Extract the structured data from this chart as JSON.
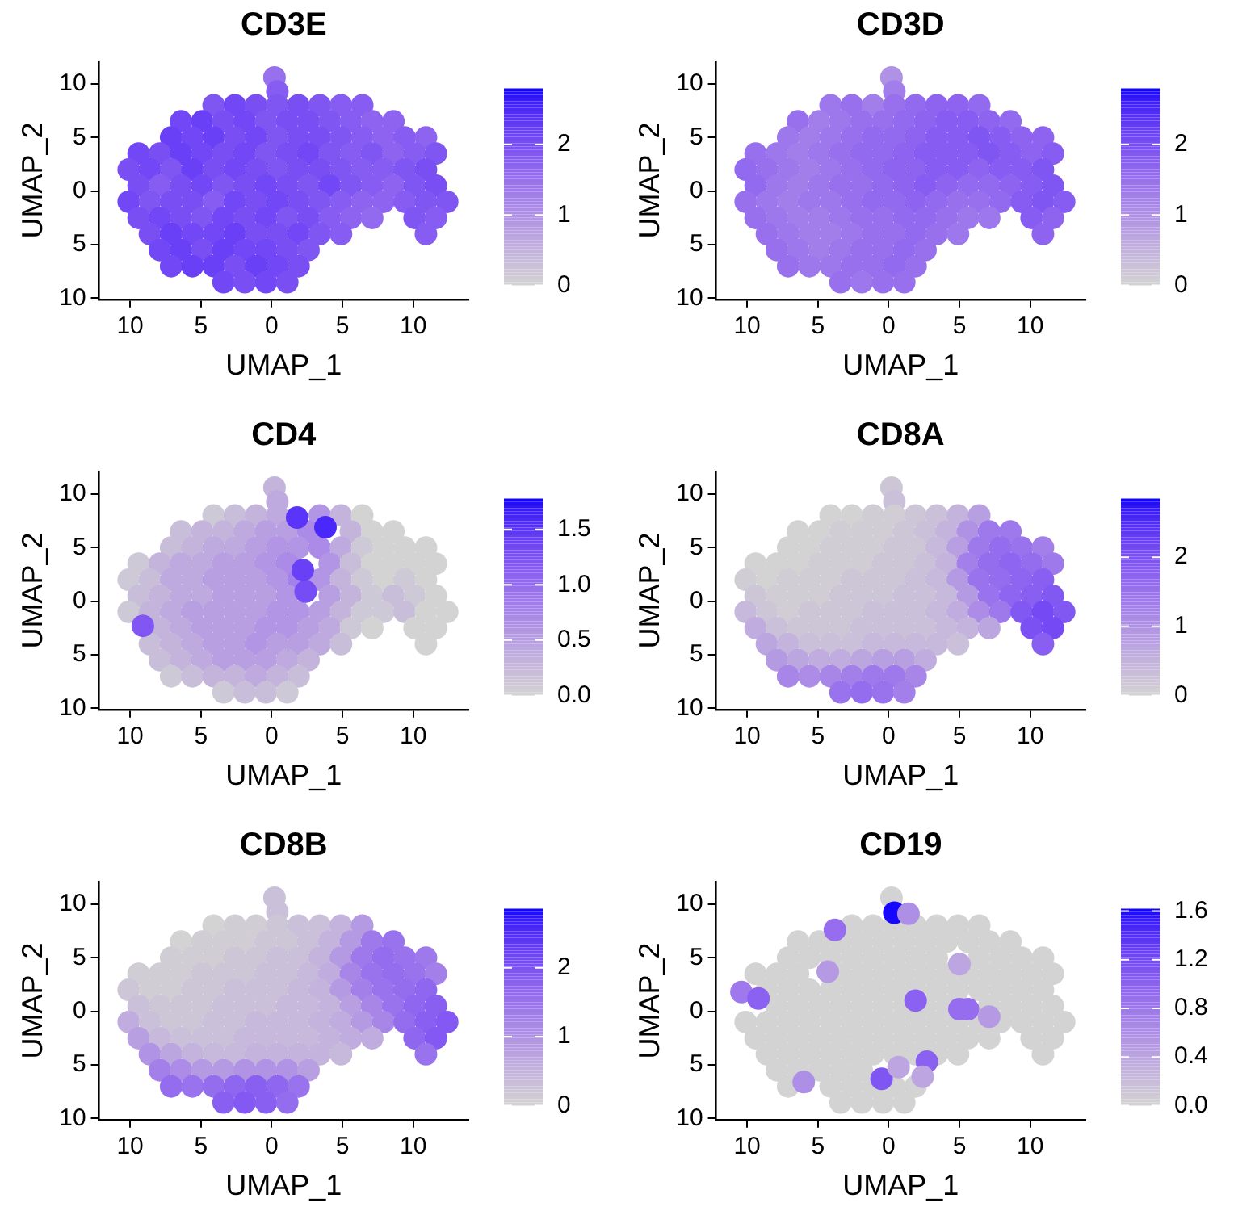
{
  "chart_data": [
    {
      "type": "scatter",
      "title": "CD3E",
      "xlabel": "UMAP_1",
      "ylabel": "UMAP_2",
      "marker": "circle",
      "xlim": [
        -12.2,
        13.9
      ],
      "ylim": [
        -10.1,
        12.1
      ],
      "xticks": [
        {
          "value": -10,
          "label": "10"
        },
        {
          "value": -5,
          "label": "5"
        },
        {
          "value": 0,
          "label": "0"
        },
        {
          "value": 5,
          "label": "5"
        },
        {
          "value": 10,
          "label": "10"
        }
      ],
      "yticks": [
        {
          "value": -10,
          "label": "10"
        },
        {
          "value": -5,
          "label": "5"
        },
        {
          "value": 0,
          "label": "0"
        },
        {
          "value": 5,
          "label": "5"
        },
        {
          "value": 10,
          "label": "10"
        }
      ],
      "clim": [
        0,
        2.8
      ],
      "cticks": [
        0,
        1,
        2
      ],
      "x": [
        0.2,
        0.4,
        -4.1,
        -2.6,
        -1.1,
        0.4,
        1.9,
        3.4,
        4.9,
        6.4,
        -6.4,
        -4.9,
        -3.4,
        -1.9,
        -0.4,
        1.1,
        2.6,
        4.1,
        5.6,
        7.1,
        8.6,
        -7.1,
        -5.6,
        -4.1,
        -2.6,
        -1.1,
        0.4,
        1.9,
        3.4,
        4.9,
        6.4,
        7.9,
        9.4,
        10.9,
        -9.4,
        -7.9,
        -6.4,
        -4.9,
        -3.4,
        -1.9,
        -0.4,
        1.1,
        2.6,
        4.1,
        5.6,
        7.1,
        8.6,
        10.1,
        11.6,
        -10.1,
        -8.6,
        -7.1,
        -5.6,
        -4.1,
        -2.6,
        -1.1,
        0.4,
        1.9,
        3.4,
        4.9,
        6.4,
        7.9,
        9.4,
        10.9,
        -9.4,
        -7.9,
        -6.4,
        -4.9,
        -3.4,
        -1.9,
        -0.4,
        1.1,
        2.6,
        4.1,
        5.6,
        7.1,
        8.6,
        10.1,
        11.6,
        -10.1,
        -8.6,
        -7.1,
        -5.6,
        -4.1,
        -2.6,
        -1.1,
        0.4,
        1.9,
        3.4,
        4.9,
        6.4,
        7.9,
        9.4,
        10.9,
        12.4,
        -9.4,
        -7.9,
        -6.4,
        -4.9,
        -3.4,
        -1.9,
        -0.4,
        1.1,
        2.6,
        4.1,
        5.6,
        7.1,
        10.1,
        11.6,
        -8.6,
        -7.1,
        -5.6,
        -4.1,
        -2.6,
        -1.1,
        0.4,
        1.9,
        3.4,
        4.9,
        10.9,
        -7.9,
        -6.4,
        -4.9,
        -3.4,
        -1.9,
        -0.4,
        1.1,
        2.6,
        -7.1,
        -5.6,
        -4.1,
        -2.6,
        -1.1,
        0.4,
        1.9,
        -3.4,
        -1.9,
        -0.4,
        1.1
      ],
      "values": [
        10.6,
        9.3,
        8,
        8,
        8,
        8,
        8,
        8,
        8,
        8,
        6.5,
        6.5,
        6.5,
        6.5,
        6.5,
        6.5,
        6.5,
        6.5,
        6.5,
        6.5,
        6.5,
        5,
        5,
        5,
        5,
        5,
        5,
        5,
        5,
        5,
        5,
        5,
        5,
        5,
        3.5,
        3.5,
        3.5,
        3.5,
        3.5,
        3.5,
        3.5,
        3.5,
        3.5,
        3.5,
        3.5,
        3.5,
        3.5,
        3.5,
        3.5,
        2,
        2,
        2,
        2,
        2,
        2,
        2,
        2,
        2,
        2,
        2,
        2,
        2,
        2,
        2,
        0.5,
        0.5,
        0.5,
        0.5,
        0.5,
        0.5,
        0.5,
        0.5,
        0.5,
        0.5,
        0.5,
        0.5,
        0.5,
        0.5,
        0.5,
        -1,
        -1,
        -1,
        -1,
        -1,
        -1,
        -1,
        -1,
        -1,
        -1,
        -1,
        -1,
        -1,
        -1,
        -1,
        -1,
        -2.5,
        -2.5,
        -2.5,
        -2.5,
        -2.5,
        -2.5,
        -2.5,
        -2.5,
        -2.5,
        -2.5,
        -2.5,
        -2.5,
        -2.5,
        -2.5,
        -4,
        -4,
        -4,
        -4,
        -4,
        -4,
        -4,
        -4,
        -4,
        -4,
        -4,
        -5.5,
        -5.5,
        -5.5,
        -5.5,
        -5.5,
        -5.5,
        -5.5,
        -5.5,
        -7,
        -7,
        -7,
        -7,
        -7,
        -7,
        -7,
        -8.5,
        -8.5,
        -8.5,
        -8.5
      ],
      "cvalues": [
        1.5,
        1.8,
        1.9,
        2.1,
        2.0,
        1.9,
        2.0,
        1.9,
        1.8,
        1.8,
        2.1,
        2.2,
        2.0,
        2.1,
        1.9,
        2.0,
        2.0,
        1.9,
        1.8,
        1.7,
        1.7,
        2.2,
        2.1,
        2.2,
        2.0,
        2.1,
        1.9,
        2.0,
        2.0,
        1.9,
        1.8,
        1.7,
        1.8,
        1.7,
        2.1,
        2.0,
        2.2,
        2.1,
        2.0,
        2.1,
        1.9,
        2.0,
        2.1,
        1.9,
        1.8,
        1.9,
        1.7,
        1.8,
        1.9,
        2.0,
        2.1,
        1.9,
        2.2,
        2.0,
        2.1,
        2.0,
        1.9,
        2.0,
        2.0,
        1.9,
        1.8,
        1.8,
        1.9,
        2.0,
        2.0,
        1.8,
        2.0,
        2.1,
        1.9,
        2.0,
        2.1,
        2.0,
        1.9,
        2.1,
        1.9,
        1.8,
        1.7,
        1.9,
        2.0,
        2.1,
        1.9,
        2.0,
        2.0,
        1.8,
        2.1,
        2.0,
        2.1,
        2.0,
        1.9,
        1.8,
        1.7,
        1.7,
        1.8,
        1.9,
        1.9,
        2.0,
        2.1,
        2.0,
        1.9,
        2.1,
        2.0,
        2.1,
        1.9,
        2.0,
        1.8,
        1.7,
        1.6,
        1.9,
        1.8,
        2.0,
        2.2,
        2.1,
        2.1,
        2.2,
        2.0,
        2.0,
        2.1,
        1.9,
        1.8,
        1.8,
        2.1,
        2.2,
        2.0,
        2.2,
        2.1,
        2.1,
        2.0,
        1.9,
        2.1,
        2.2,
        2.2,
        2.0,
        2.2,
        2.1,
        2.0,
        2.1,
        2.0,
        2.1,
        2.0
      ]
    },
    {
      "type": "scatter",
      "title": "CD3D",
      "xlabel": "UMAP_1",
      "ylabel": "UMAP_2",
      "marker": "circle",
      "xlim": [
        -12.2,
        13.9
      ],
      "ylim": [
        -10.1,
        12.1
      ],
      "xticks": [
        {
          "value": -10,
          "label": "10"
        },
        {
          "value": -5,
          "label": "5"
        },
        {
          "value": 0,
          "label": "0"
        },
        {
          "value": 5,
          "label": "5"
        },
        {
          "value": 10,
          "label": "10"
        }
      ],
      "yticks": [
        {
          "value": -10,
          "label": "10"
        },
        {
          "value": -5,
          "label": "5"
        },
        {
          "value": 0,
          "label": "0"
        },
        {
          "value": 5,
          "label": "5"
        },
        {
          "value": 10,
          "label": "10"
        }
      ],
      "clim": [
        0,
        2.8
      ],
      "cticks": [
        0,
        1,
        2
      ],
      "x": [
        0.2,
        0.4,
        -4.1,
        -2.6,
        -1.1,
        0.4,
        1.9,
        3.4,
        4.9,
        6.4,
        -6.4,
        -4.9,
        -3.4,
        -1.9,
        -0.4,
        1.1,
        2.6,
        4.1,
        5.6,
        7.1,
        8.6,
        -7.1,
        -5.6,
        -4.1,
        -2.6,
        -1.1,
        0.4,
        1.9,
        3.4,
        4.9,
        6.4,
        7.9,
        9.4,
        10.9,
        -9.4,
        -7.9,
        -6.4,
        -4.9,
        -3.4,
        -1.9,
        -0.4,
        1.1,
        2.6,
        4.1,
        5.6,
        7.1,
        8.6,
        10.1,
        11.6,
        -10.1,
        -8.6,
        -7.1,
        -5.6,
        -4.1,
        -2.6,
        -1.1,
        0.4,
        1.9,
        3.4,
        4.9,
        6.4,
        7.9,
        9.4,
        10.9,
        -9.4,
        -7.9,
        -6.4,
        -4.9,
        -3.4,
        -1.9,
        -0.4,
        1.1,
        2.6,
        4.1,
        5.6,
        7.1,
        8.6,
        10.1,
        11.6,
        -10.1,
        -8.6,
        -7.1,
        -5.6,
        -4.1,
        -2.6,
        -1.1,
        0.4,
        1.9,
        3.4,
        4.9,
        6.4,
        7.9,
        9.4,
        10.9,
        12.4,
        -9.4,
        -7.9,
        -6.4,
        -4.9,
        -3.4,
        -1.9,
        -0.4,
        1.1,
        2.6,
        4.1,
        5.6,
        7.1,
        10.1,
        11.6,
        -8.6,
        -7.1,
        -5.6,
        -4.1,
        -2.6,
        -1.1,
        0.4,
        1.9,
        3.4,
        4.9,
        10.9,
        -7.9,
        -6.4,
        -4.9,
        -3.4,
        -1.9,
        -0.4,
        1.1,
        2.6,
        -7.1,
        -5.6,
        -4.1,
        -2.6,
        -1.1,
        0.4,
        1.9,
        -3.4,
        -1.9,
        -0.4,
        1.1
      ],
      "values": [
        10.6,
        9.3,
        8,
        8,
        8,
        8,
        8,
        8,
        8,
        8,
        6.5,
        6.5,
        6.5,
        6.5,
        6.5,
        6.5,
        6.5,
        6.5,
        6.5,
        6.5,
        6.5,
        5,
        5,
        5,
        5,
        5,
        5,
        5,
        5,
        5,
        5,
        5,
        5,
        5,
        3.5,
        3.5,
        3.5,
        3.5,
        3.5,
        3.5,
        3.5,
        3.5,
        3.5,
        3.5,
        3.5,
        3.5,
        3.5,
        3.5,
        3.5,
        2,
        2,
        2,
        2,
        2,
        2,
        2,
        2,
        2,
        2,
        2,
        2,
        2,
        2,
        2,
        0.5,
        0.5,
        0.5,
        0.5,
        0.5,
        0.5,
        0.5,
        0.5,
        0.5,
        0.5,
        0.5,
        0.5,
        0.5,
        0.5,
        0.5,
        -1,
        -1,
        -1,
        -1,
        -1,
        -1,
        -1,
        -1,
        -1,
        -1,
        -1,
        -1,
        -1,
        -1,
        -1,
        -1,
        -2.5,
        -2.5,
        -2.5,
        -2.5,
        -2.5,
        -2.5,
        -2.5,
        -2.5,
        -2.5,
        -2.5,
        -2.5,
        -2.5,
        -2.5,
        -2.5,
        -4,
        -4,
        -4,
        -4,
        -4,
        -4,
        -4,
        -4,
        -4,
        -4,
        -4,
        -5.5,
        -5.5,
        -5.5,
        -5.5,
        -5.5,
        -5.5,
        -5.5,
        -5.5,
        -7,
        -7,
        -7,
        -7,
        -7,
        -7,
        -7,
        -8.5,
        -8.5,
        -8.5,
        -8.5
      ],
      "cvalues": [
        1.0,
        1.3,
        1.4,
        1.5,
        1.3,
        1.5,
        1.6,
        1.7,
        1.7,
        1.6,
        1.5,
        1.3,
        1.4,
        1.5,
        1.5,
        1.6,
        1.7,
        1.8,
        1.8,
        1.7,
        1.6,
        1.4,
        1.3,
        1.4,
        1.5,
        1.6,
        1.6,
        1.7,
        1.8,
        1.8,
        1.9,
        1.8,
        1.7,
        1.7,
        1.5,
        1.4,
        1.3,
        1.4,
        1.5,
        1.6,
        1.6,
        1.7,
        1.8,
        1.8,
        1.8,
        1.9,
        1.8,
        1.7,
        1.8,
        1.6,
        1.5,
        1.4,
        1.3,
        1.4,
        1.5,
        1.6,
        1.7,
        1.7,
        1.8,
        1.8,
        1.7,
        1.8,
        1.8,
        1.9,
        1.6,
        1.4,
        1.3,
        1.4,
        1.5,
        1.5,
        1.6,
        1.7,
        1.8,
        1.7,
        1.6,
        1.6,
        1.7,
        1.8,
        1.9,
        1.5,
        1.4,
        1.3,
        1.4,
        1.4,
        1.5,
        1.6,
        1.6,
        1.7,
        1.6,
        1.5,
        1.5,
        1.6,
        1.8,
        1.9,
        1.8,
        1.5,
        1.4,
        1.3,
        1.3,
        1.4,
        1.5,
        1.5,
        1.6,
        1.6,
        1.5,
        1.4,
        1.4,
        1.8,
        1.7,
        1.5,
        1.4,
        1.3,
        1.3,
        1.4,
        1.5,
        1.5,
        1.6,
        1.5,
        1.4,
        1.7,
        1.5,
        1.4,
        1.3,
        1.4,
        1.5,
        1.5,
        1.6,
        1.5,
        1.5,
        1.4,
        1.4,
        1.5,
        1.5,
        1.6,
        1.5,
        1.5,
        1.4,
        1.5,
        1.5
      ]
    },
    {
      "type": "scatter",
      "title": "CD4",
      "xlabel": "UMAP_1",
      "ylabel": "UMAP_2",
      "marker": "circle",
      "xlim": [
        -12.2,
        13.9
      ],
      "ylim": [
        -10.1,
        12.1
      ],
      "xticks": [
        {
          "value": -10,
          "label": "10"
        },
        {
          "value": -5,
          "label": "5"
        },
        {
          "value": 0,
          "label": "0"
        },
        {
          "value": 5,
          "label": "5"
        },
        {
          "value": 10,
          "label": "10"
        }
      ],
      "yticks": [
        {
          "value": -10,
          "label": "10"
        },
        {
          "value": -5,
          "label": "5"
        },
        {
          "value": 0,
          "label": "0"
        },
        {
          "value": 5,
          "label": "5"
        },
        {
          "value": 10,
          "label": "10"
        }
      ],
      "clim": [
        0,
        1.78
      ],
      "cticks": [
        {
          "value": 0,
          "label": "0.0"
        },
        {
          "value": 0.5,
          "label": "0.5"
        },
        {
          "value": 1,
          "label": "1.0"
        },
        {
          "value": 1.5,
          "label": "1.5"
        }
      ],
      "x": [
        0.2,
        0.4,
        -4.1,
        -2.6,
        -1.1,
        0.4,
        3.4,
        4.9,
        6.4,
        -6.4,
        -4.9,
        -3.4,
        -1.9,
        -0.4,
        1.1,
        2.6,
        5.6,
        7.1,
        8.6,
        -7.1,
        -5.6,
        -4.1,
        -2.6,
        -1.1,
        0.4,
        1.9,
        3.4,
        4.9,
        6.4,
        7.9,
        9.4,
        10.9,
        -9.4,
        -7.9,
        -6.4,
        -4.9,
        -3.4,
        -1.9,
        -0.4,
        1.1,
        4.1,
        5.6,
        7.1,
        8.6,
        10.1,
        11.6,
        -10.1,
        -8.6,
        -7.1,
        -5.6,
        -4.1,
        -2.6,
        -1.1,
        0.4,
        1.9,
        3.4,
        4.9,
        6.4,
        7.9,
        9.4,
        10.9,
        -9.4,
        -7.9,
        -6.4,
        -4.9,
        -3.4,
        -1.9,
        -0.4,
        1.1,
        4.1,
        5.6,
        7.1,
        8.6,
        10.1,
        11.6,
        -10.1,
        -8.6,
        -7.1,
        -5.6,
        -4.1,
        -2.6,
        -1.1,
        0.4,
        1.9,
        3.4,
        4.9,
        6.4,
        7.9,
        9.4,
        10.9,
        12.4,
        -7.9,
        -6.4,
        -4.9,
        -3.4,
        -1.9,
        -0.4,
        1.1,
        2.6,
        4.1,
        5.6,
        7.1,
        10.1,
        11.6,
        -8.6,
        -7.1,
        -5.6,
        -4.1,
        -2.6,
        -1.1,
        0.4,
        1.9,
        3.4,
        4.9,
        10.9,
        -7.9,
        -6.4,
        -4.9,
        -3.4,
        -1.9,
        -0.4,
        1.1,
        2.6,
        -7.1,
        -5.6,
        -4.1,
        -2.6,
        -1.1,
        0.4,
        1.9,
        -3.4,
        -1.9,
        -0.4,
        1.1,
        3.8,
        2.4,
        1.8,
        2.2,
        -9.1
      ],
      "values": [
        10.6,
        9.3,
        8,
        8,
        8,
        8,
        8,
        8,
        8,
        6.5,
        6.5,
        6.5,
        6.5,
        6.5,
        6.5,
        6.5,
        6.5,
        6.5,
        6.5,
        5,
        5,
        5,
        5,
        5,
        5,
        5,
        5,
        5,
        5,
        5,
        5,
        5,
        3.5,
        3.5,
        3.5,
        3.5,
        3.5,
        3.5,
        3.5,
        3.5,
        3.5,
        3.5,
        3.5,
        3.5,
        3.5,
        3.5,
        2,
        2,
        2,
        2,
        2,
        2,
        2,
        2,
        2,
        2,
        2,
        2,
        2,
        2,
        2,
        0.5,
        0.5,
        0.5,
        0.5,
        0.5,
        0.5,
        0.5,
        0.5,
        0.5,
        0.5,
        0.5,
        0.5,
        0.5,
        0.5,
        -1,
        -1,
        -1,
        -1,
        -1,
        -1,
        -1,
        -1,
        -1,
        -1,
        -1,
        -1,
        -1,
        -1,
        -1,
        -1,
        -2.5,
        -2.5,
        -2.5,
        -2.5,
        -2.5,
        -2.5,
        -2.5,
        -2.5,
        -2.5,
        -2.5,
        -2.5,
        -2.5,
        -2.5,
        -4,
        -4,
        -4,
        -4,
        -4,
        -4,
        -4,
        -4,
        -4,
        -4,
        -4,
        -5.5,
        -5.5,
        -5.5,
        -5.5,
        -5.5,
        -5.5,
        -5.5,
        -5.5,
        -7,
        -7,
        -7,
        -7,
        -7,
        -7,
        -7,
        -8.5,
        -8.5,
        -8.5,
        -8.5,
        6.9,
        0.9,
        7.8,
        2.9,
        -2.3
      ],
      "cvalues": [
        0.3,
        0.4,
        0.1,
        0.2,
        0.3,
        0.4,
        0.6,
        0.3,
        0,
        0.2,
        0.3,
        0.3,
        0.4,
        0.5,
        0.5,
        0.7,
        0.3,
        0,
        0,
        0.2,
        0.3,
        0.4,
        0.4,
        0.5,
        0.6,
        0.6,
        0.7,
        0.4,
        0.1,
        0,
        0,
        0,
        0.1,
        0.3,
        0.4,
        0.4,
        0.5,
        0.5,
        0.6,
        0.7,
        0.6,
        0.2,
        0,
        0,
        0,
        0,
        0.1,
        0.2,
        0.4,
        0.4,
        0.5,
        0.5,
        0.5,
        0.6,
        0.8,
        0.6,
        0.3,
        0.1,
        0,
        0.1,
        0,
        0.2,
        0.3,
        0.4,
        0.4,
        0.5,
        0.5,
        0.5,
        0.6,
        0.5,
        0.3,
        0.1,
        0.2,
        0.1,
        0,
        0.1,
        0.3,
        0.4,
        0.5,
        0.5,
        0.5,
        0.5,
        0.6,
        0.6,
        0.5,
        0.3,
        0.1,
        0.1,
        0.2,
        0,
        0,
        0.3,
        0.4,
        0.5,
        0.5,
        0.5,
        0.6,
        0.6,
        0.5,
        0.4,
        0.1,
        0,
        0,
        0,
        0.2,
        0.3,
        0.4,
        0.5,
        0.5,
        0.6,
        0.5,
        0.5,
        0.4,
        0.2,
        0,
        0.2,
        0.3,
        0.4,
        0.5,
        0.5,
        0.5,
        0.4,
        0.3,
        0.1,
        0.2,
        0.3,
        0.3,
        0.4,
        0.3,
        0.2,
        0.1,
        0.2,
        0.2,
        0.1,
        1.6,
        1.3,
        1.5,
        1.4,
        1.2
      ]
    },
    {
      "type": "scatter",
      "title": "CD8A",
      "xlabel": "UMAP_1",
      "ylabel": "UMAP_2",
      "marker": "circle",
      "xlim": [
        -12.2,
        13.9
      ],
      "ylim": [
        -10.1,
        12.1
      ],
      "xticks": [
        {
          "value": -10,
          "label": "10"
        },
        {
          "value": -5,
          "label": "5"
        },
        {
          "value": 0,
          "label": "0"
        },
        {
          "value": 5,
          "label": "5"
        },
        {
          "value": 10,
          "label": "10"
        }
      ],
      "yticks": [
        {
          "value": -10,
          "label": "10"
        },
        {
          "value": -5,
          "label": "5"
        },
        {
          "value": 0,
          "label": "0"
        },
        {
          "value": 5,
          "label": "5"
        },
        {
          "value": 10,
          "label": "10"
        }
      ],
      "clim": [
        0,
        2.85
      ],
      "cticks": [
        0,
        1,
        2
      ],
      "x": [
        0.2,
        0.4,
        -4.1,
        -2.6,
        -1.1,
        0.4,
        1.9,
        3.4,
        4.9,
        6.4,
        -6.4,
        -4.9,
        -3.4,
        -1.9,
        -0.4,
        1.1,
        2.6,
        4.1,
        5.6,
        7.1,
        8.6,
        -7.1,
        -5.6,
        -4.1,
        -2.6,
        -1.1,
        0.4,
        1.9,
        3.4,
        4.9,
        6.4,
        7.9,
        9.4,
        10.9,
        -9.4,
        -7.9,
        -6.4,
        -4.9,
        -3.4,
        -1.9,
        -0.4,
        1.1,
        2.6,
        4.1,
        5.6,
        7.1,
        8.6,
        10.1,
        11.6,
        -10.1,
        -8.6,
        -7.1,
        -5.6,
        -4.1,
        -2.6,
        -1.1,
        0.4,
        1.9,
        3.4,
        4.9,
        6.4,
        7.9,
        9.4,
        10.9,
        -9.4,
        -7.9,
        -6.4,
        -4.9,
        -3.4,
        -1.9,
        -0.4,
        1.1,
        2.6,
        4.1,
        5.6,
        7.1,
        8.6,
        10.1,
        11.6,
        -10.1,
        -8.6,
        -7.1,
        -5.6,
        -4.1,
        -2.6,
        -1.1,
        0.4,
        1.9,
        3.4,
        4.9,
        6.4,
        7.9,
        9.4,
        10.9,
        12.4,
        -9.4,
        -7.9,
        -6.4,
        -4.9,
        -3.4,
        -1.9,
        -0.4,
        1.1,
        2.6,
        4.1,
        5.6,
        7.1,
        10.1,
        11.6,
        -8.6,
        -7.1,
        -5.6,
        -4.1,
        -2.6,
        -1.1,
        0.4,
        1.9,
        3.4,
        4.9,
        10.9,
        -7.9,
        -6.4,
        -4.9,
        -3.4,
        -1.9,
        -0.4,
        1.1,
        2.6,
        -7.1,
        -5.6,
        -4.1,
        -2.6,
        -1.1,
        0.4,
        1.9,
        -3.4,
        -1.9,
        -0.4,
        1.1
      ],
      "values": [
        10.6,
        9.3,
        8,
        8,
        8,
        8,
        8,
        8,
        8,
        8,
        6.5,
        6.5,
        6.5,
        6.5,
        6.5,
        6.5,
        6.5,
        6.5,
        6.5,
        6.5,
        6.5,
        5,
        5,
        5,
        5,
        5,
        5,
        5,
        5,
        5,
        5,
        5,
        5,
        5,
        3.5,
        3.5,
        3.5,
        3.5,
        3.5,
        3.5,
        3.5,
        3.5,
        3.5,
        3.5,
        3.5,
        3.5,
        3.5,
        3.5,
        3.5,
        2,
        2,
        2,
        2,
        2,
        2,
        2,
        2,
        2,
        2,
        2,
        2,
        2,
        2,
        2,
        0.5,
        0.5,
        0.5,
        0.5,
        0.5,
        0.5,
        0.5,
        0.5,
        0.5,
        0.5,
        0.5,
        0.5,
        0.5,
        0.5,
        0.5,
        -1,
        -1,
        -1,
        -1,
        -1,
        -1,
        -1,
        -1,
        -1,
        -1,
        -1,
        -1,
        -1,
        -1,
        -1,
        -1,
        -2.5,
        -2.5,
        -2.5,
        -2.5,
        -2.5,
        -2.5,
        -2.5,
        -2.5,
        -2.5,
        -2.5,
        -2.5,
        -2.5,
        -2.5,
        -2.5,
        -4,
        -4,
        -4,
        -4,
        -4,
        -4,
        -4,
        -4,
        -4,
        -4,
        -4,
        -5.5,
        -5.5,
        -5.5,
        -5.5,
        -5.5,
        -5.5,
        -5.5,
        -5.5,
        -7,
        -7,
        -7,
        -7,
        -7,
        -7,
        -7,
        -8.5,
        -8.5,
        -8.5,
        -8.5
      ],
      "cvalues": [
        0.2,
        0.3,
        0,
        0,
        0.1,
        0.1,
        0.2,
        0.3,
        0.5,
        0.8,
        0,
        0,
        0.1,
        0.1,
        0.1,
        0.2,
        0.3,
        0.5,
        1.0,
        1.4,
        1.4,
        0,
        0,
        0.1,
        0.1,
        0.1,
        0.2,
        0.2,
        0.4,
        0.8,
        1.4,
        1.6,
        1.5,
        1.3,
        0,
        0,
        0,
        0.1,
        0.1,
        0.1,
        0.2,
        0.2,
        0.3,
        0.5,
        1.3,
        1.6,
        1.7,
        1.6,
        1.4,
        0.1,
        0,
        0.1,
        0.1,
        0.1,
        0.2,
        0.2,
        0.2,
        0.3,
        0.4,
        0.9,
        1.5,
        1.6,
        1.7,
        1.8,
        0.2,
        0.1,
        0.1,
        0.1,
        0.2,
        0.2,
        0.2,
        0.3,
        0.3,
        0.4,
        0.9,
        1.5,
        1.7,
        1.8,
        1.9,
        0.4,
        0.2,
        0.1,
        0.2,
        0.2,
        0.2,
        0.3,
        0.3,
        0.3,
        0.4,
        0.6,
        1.1,
        1.4,
        1.9,
        2.1,
        1.9,
        0.6,
        0.3,
        0.2,
        0.2,
        0.2,
        0.3,
        0.3,
        0.3,
        0.3,
        0.4,
        0.5,
        0.7,
        2.0,
        2.1,
        0.7,
        0.5,
        0.3,
        0.3,
        0.3,
        0.4,
        0.4,
        0.4,
        0.4,
        0.3,
        1.8,
        0.9,
        0.7,
        0.6,
        0.6,
        0.7,
        0.8,
        0.8,
        0.6,
        1.2,
        1.1,
        1.2,
        1.3,
        1.4,
        1.4,
        1.2,
        1.5,
        1.6,
        1.5,
        1.3
      ]
    },
    {
      "type": "scatter",
      "title": "CD8B",
      "xlabel": "UMAP_1",
      "ylabel": "UMAP_2",
      "marker": "circle",
      "xlim": [
        -12.2,
        13.9
      ],
      "ylim": [
        -10.1,
        12.1
      ],
      "xticks": [
        {
          "value": -10,
          "label": "10"
        },
        {
          "value": -5,
          "label": "5"
        },
        {
          "value": 0,
          "label": "0"
        },
        {
          "value": 5,
          "label": "5"
        },
        {
          "value": 10,
          "label": "10"
        }
      ],
      "yticks": [
        {
          "value": -10,
          "label": "10"
        },
        {
          "value": -5,
          "label": "5"
        },
        {
          "value": 0,
          "label": "0"
        },
        {
          "value": 5,
          "label": "5"
        },
        {
          "value": 10,
          "label": "10"
        }
      ],
      "clim": [
        0,
        2.86
      ],
      "cticks": [
        0,
        1,
        2
      ],
      "x": [
        0.2,
        0.4,
        -4.1,
        -2.6,
        -1.1,
        0.4,
        1.9,
        3.4,
        4.9,
        6.4,
        -6.4,
        -4.9,
        -3.4,
        -1.9,
        -0.4,
        1.1,
        2.6,
        4.1,
        5.6,
        7.1,
        8.6,
        -7.1,
        -5.6,
        -4.1,
        -2.6,
        -1.1,
        0.4,
        1.9,
        3.4,
        4.9,
        6.4,
        7.9,
        9.4,
        10.9,
        -9.4,
        -7.9,
        -6.4,
        -4.9,
        -3.4,
        -1.9,
        -0.4,
        1.1,
        2.6,
        4.1,
        5.6,
        7.1,
        8.6,
        10.1,
        11.6,
        -10.1,
        -8.6,
        -7.1,
        -5.6,
        -4.1,
        -2.6,
        -1.1,
        0.4,
        1.9,
        3.4,
        4.9,
        6.4,
        7.9,
        9.4,
        10.9,
        -9.4,
        -7.9,
        -6.4,
        -4.9,
        -3.4,
        -1.9,
        -0.4,
        1.1,
        2.6,
        4.1,
        5.6,
        7.1,
        8.6,
        10.1,
        11.6,
        -10.1,
        -8.6,
        -7.1,
        -5.6,
        -4.1,
        -2.6,
        -1.1,
        0.4,
        1.9,
        3.4,
        4.9,
        6.4,
        7.9,
        9.4,
        10.9,
        12.4,
        -9.4,
        -7.9,
        -6.4,
        -4.9,
        -3.4,
        -1.9,
        -0.4,
        1.1,
        2.6,
        4.1,
        5.6,
        7.1,
        10.1,
        11.6,
        -8.6,
        -7.1,
        -5.6,
        -4.1,
        -2.6,
        -1.1,
        0.4,
        1.9,
        3.4,
        4.9,
        10.9,
        -7.9,
        -6.4,
        -4.9,
        -3.4,
        -1.9,
        -0.4,
        1.1,
        2.6,
        -7.1,
        -5.6,
        -4.1,
        -2.6,
        -1.1,
        0.4,
        1.9,
        -3.4,
        -1.9,
        -0.4,
        1.1
      ],
      "values": [
        10.6,
        9.3,
        8,
        8,
        8,
        8,
        8,
        8,
        8,
        8,
        6.5,
        6.5,
        6.5,
        6.5,
        6.5,
        6.5,
        6.5,
        6.5,
        6.5,
        6.5,
        6.5,
        5,
        5,
        5,
        5,
        5,
        5,
        5,
        5,
        5,
        5,
        5,
        5,
        5,
        3.5,
        3.5,
        3.5,
        3.5,
        3.5,
        3.5,
        3.5,
        3.5,
        3.5,
        3.5,
        3.5,
        3.5,
        3.5,
        3.5,
        3.5,
        2,
        2,
        2,
        2,
        2,
        2,
        2,
        2,
        2,
        2,
        2,
        2,
        2,
        2,
        2,
        0.5,
        0.5,
        0.5,
        0.5,
        0.5,
        0.5,
        0.5,
        0.5,
        0.5,
        0.5,
        0.5,
        0.5,
        0.5,
        0.5,
        0.5,
        -1,
        -1,
        -1,
        -1,
        -1,
        -1,
        -1,
        -1,
        -1,
        -1,
        -1,
        -1,
        -1,
        -1,
        -1,
        -1,
        -2.5,
        -2.5,
        -2.5,
        -2.5,
        -2.5,
        -2.5,
        -2.5,
        -2.5,
        -2.5,
        -2.5,
        -2.5,
        -2.5,
        -2.5,
        -2.5,
        -4,
        -4,
        -4,
        -4,
        -4,
        -4,
        -4,
        -4,
        -4,
        -4,
        -4,
        -5.5,
        -5.5,
        -5.5,
        -5.5,
        -5.5,
        -5.5,
        -5.5,
        -5.5,
        -7,
        -7,
        -7,
        -7,
        -7,
        -7,
        -7,
        -8.5,
        -8.5,
        -8.5,
        -8.5
      ],
      "cvalues": [
        0.3,
        0.3,
        0,
        0.1,
        0.1,
        0.2,
        0.3,
        0.3,
        0.5,
        0.9,
        0,
        0.1,
        0.1,
        0.1,
        0.2,
        0.2,
        0.3,
        0.5,
        0.9,
        1.4,
        1.5,
        0.1,
        0.1,
        0.1,
        0.2,
        0.2,
        0.3,
        0.3,
        0.5,
        0.9,
        1.4,
        1.6,
        1.5,
        1.4,
        0.1,
        0.1,
        0.1,
        0.2,
        0.2,
        0.2,
        0.3,
        0.3,
        0.4,
        0.6,
        1.2,
        1.5,
        1.6,
        1.5,
        1.3,
        0.2,
        0.1,
        0.1,
        0.2,
        0.2,
        0.3,
        0.3,
        0.3,
        0.4,
        0.5,
        0.9,
        1.3,
        1.5,
        1.6,
        1.7,
        0.3,
        0.2,
        0.2,
        0.2,
        0.3,
        0.3,
        0.3,
        0.4,
        0.4,
        0.5,
        0.8,
        1.2,
        1.5,
        1.7,
        1.8,
        0.6,
        0.3,
        0.2,
        0.2,
        0.3,
        0.3,
        0.4,
        0.4,
        0.4,
        0.5,
        0.6,
        0.9,
        1.2,
        1.6,
        1.8,
        1.9,
        0.8,
        0.4,
        0.3,
        0.3,
        0.3,
        0.4,
        0.4,
        0.4,
        0.4,
        0.5,
        0.6,
        0.6,
        1.7,
        1.9,
        1.0,
        0.7,
        0.5,
        0.4,
        0.4,
        0.5,
        0.5,
        0.5,
        0.5,
        0.4,
        1.5,
        1.3,
        1.1,
        0.9,
        0.9,
        1.0,
        1.0,
        1.0,
        0.8,
        1.6,
        1.5,
        1.6,
        1.7,
        1.8,
        1.7,
        1.5,
        1.8,
        1.9,
        1.8,
        1.6
      ]
    },
    {
      "type": "scatter",
      "title": "CD19",
      "xlabel": "UMAP_1",
      "ylabel": "UMAP_2",
      "marker": "circle",
      "xlim": [
        -12.2,
        13.9
      ],
      "ylim": [
        -10.1,
        12.1
      ],
      "xticks": [
        {
          "value": -10,
          "label": "10"
        },
        {
          "value": -5,
          "label": "5"
        },
        {
          "value": 0,
          "label": "0"
        },
        {
          "value": 5,
          "label": "5"
        },
        {
          "value": 10,
          "label": "10"
        }
      ],
      "yticks": [
        {
          "value": -10,
          "label": "10"
        },
        {
          "value": -5,
          "label": "5"
        },
        {
          "value": 0,
          "label": "0"
        },
        {
          "value": 5,
          "label": "5"
        },
        {
          "value": 10,
          "label": "10"
        }
      ],
      "clim": [
        0,
        1.62
      ],
      "cticks": [
        {
          "value": 0,
          "label": "0.0"
        },
        {
          "value": 0.4,
          "label": "0.4"
        },
        {
          "value": 0.8,
          "label": "0.8"
        },
        {
          "value": 1.2,
          "label": "1.2"
        },
        {
          "value": 1.6,
          "label": "1.6"
        }
      ],
      "x": [
        0.2,
        -2.6,
        -1.1,
        0.4,
        1.9,
        3.4,
        4.9,
        6.4,
        -6.4,
        -4.9,
        -3.4,
        -1.9,
        -0.4,
        1.1,
        2.6,
        4.1,
        5.6,
        7.1,
        8.6,
        -7.1,
        -5.6,
        -4.1,
        -2.6,
        -1.1,
        0.4,
        1.9,
        3.4,
        6.4,
        7.9,
        9.4,
        10.9,
        -9.4,
        -7.9,
        -6.4,
        -3.4,
        -1.9,
        -0.4,
        1.1,
        2.6,
        4.1,
        5.6,
        7.1,
        8.6,
        10.1,
        11.6,
        -8.6,
        -7.1,
        -5.6,
        -4.1,
        -2.6,
        -1.1,
        0.4,
        1.9,
        3.4,
        4.9,
        6.4,
        7.9,
        9.4,
        10.9,
        -7.9,
        -6.4,
        -4.9,
        -3.4,
        -1.9,
        -0.4,
        1.1,
        2.6,
        4.1,
        7.1,
        8.6,
        10.1,
        11.6,
        -10.1,
        -8.6,
        -7.1,
        -5.6,
        -4.1,
        -2.6,
        -1.1,
        0.4,
        1.9,
        3.4,
        4.9,
        6.4,
        7.9,
        9.4,
        10.9,
        12.4,
        -9.4,
        -7.9,
        -6.4,
        -4.9,
        -3.4,
        -1.9,
        -0.4,
        1.1,
        2.6,
        4.1,
        5.6,
        7.1,
        10.1,
        11.6,
        -8.6,
        -7.1,
        -5.6,
        -4.1,
        -2.6,
        -1.1,
        0.4,
        1.9,
        3.4,
        4.9,
        10.9,
        -7.9,
        -6.4,
        -4.9,
        -3.4,
        -1.9,
        -7.1,
        -4.1,
        -2.6,
        -1.1,
        0.4,
        1.9,
        -3.4,
        -1.9,
        -0.4,
        1.1,
        0.4,
        1.4,
        -3.8,
        -4.3,
        -10.4,
        -9.2,
        1.9,
        5,
        5.6,
        7.1,
        2.7,
        -0.5,
        -6,
        0.7,
        2.4,
        5
      ],
      "values": [
        10.6,
        8,
        8,
        8,
        8,
        8,
        8,
        8,
        6.5,
        6.5,
        6.5,
        6.5,
        6.5,
        6.5,
        6.5,
        6.5,
        6.5,
        6.5,
        6.5,
        5,
        5,
        5,
        5,
        5,
        5,
        5,
        5,
        5,
        5,
        5,
        5,
        3.5,
        3.5,
        3.5,
        3.5,
        3.5,
        3.5,
        3.5,
        3.5,
        3.5,
        3.5,
        3.5,
        3.5,
        3.5,
        3.5,
        2,
        2,
        2,
        2,
        2,
        2,
        2,
        2,
        2,
        2,
        2,
        2,
        2,
        2,
        0.5,
        0.5,
        0.5,
        0.5,
        0.5,
        0.5,
        0.5,
        0.5,
        0.5,
        0.5,
        0.5,
        0.5,
        0.5,
        -1,
        -1,
        -1,
        -1,
        -1,
        -1,
        -1,
        -1,
        -1,
        -1,
        -1,
        -1,
        -1,
        -1,
        -1,
        -1,
        -2.5,
        -2.5,
        -2.5,
        -2.5,
        -2.5,
        -2.5,
        -2.5,
        -2.5,
        -2.5,
        -2.5,
        -2.5,
        -2.5,
        -2.5,
        -2.5,
        -4,
        -4,
        -4,
        -4,
        -4,
        -4,
        -4,
        -4,
        -4,
        -4,
        -4,
        -5.5,
        -5.5,
        -5.5,
        -5.5,
        -5.5,
        -7,
        -7,
        -7,
        -7,
        -7,
        -7,
        -8.5,
        -8.5,
        -8.5,
        -8.5,
        9.2,
        9.1,
        7.6,
        3.7,
        1.8,
        1.2,
        1,
        0.2,
        0.2,
        -0.5,
        -4.7,
        -6.3,
        -6.6,
        -5.2,
        -6.1,
        4.4
      ],
      "cvalues": [
        0,
        0,
        0,
        0,
        0,
        0,
        0,
        0,
        0,
        0,
        0,
        0,
        0,
        0,
        0,
        0,
        0,
        0,
        0,
        0,
        0,
        0,
        0,
        0,
        0,
        0,
        0,
        0,
        0,
        0,
        0,
        0,
        0,
        0,
        0,
        0,
        0,
        0,
        0,
        0,
        0,
        0,
        0,
        0,
        0,
        0,
        0,
        0,
        0,
        0,
        0,
        0,
        0,
        0,
        0,
        0,
        0,
        0,
        0,
        0,
        0,
        0,
        0,
        0,
        0,
        0,
        0,
        0,
        0,
        0,
        0,
        0,
        0,
        0,
        0,
        0,
        0,
        0,
        0,
        0,
        0,
        0,
        0,
        0,
        0,
        0,
        0,
        0,
        0,
        0,
        0,
        0,
        0,
        0,
        0,
        0,
        0,
        0,
        0,
        0,
        0,
        0,
        0,
        0,
        0,
        0,
        0,
        0,
        0,
        0,
        0,
        0,
        0,
        0,
        0,
        0,
        0,
        0,
        0,
        0,
        0,
        0,
        0,
        0,
        0,
        0,
        0,
        0,
        1.6,
        0.6,
        0.9,
        0.5,
        0.8,
        1.0,
        1.0,
        0.9,
        0.9,
        0.5,
        1.0,
        1.1,
        0.6,
        0.4,
        0.4,
        0.4
      ]
    }
  ]
}
